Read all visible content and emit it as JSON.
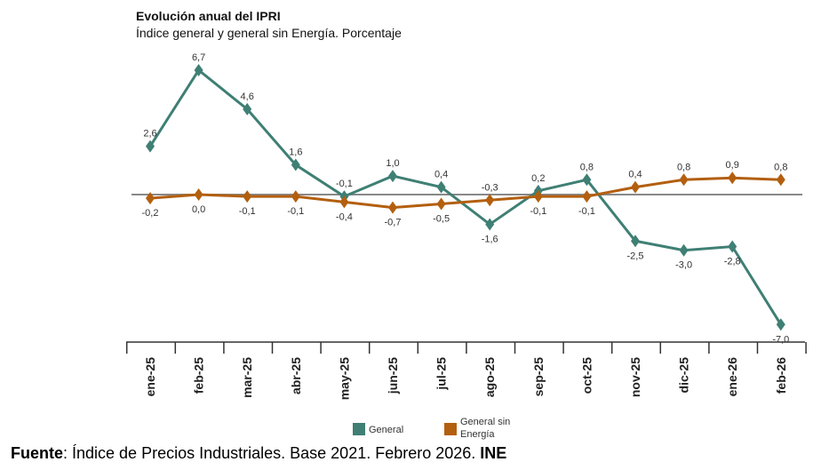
{
  "title": "Evolución anual del IPRI",
  "subtitle": "Índice general y general sin Energía. Porcentaje",
  "source": {
    "label": "Fuente",
    "text": ": Índice de Precios Industriales. Base 2021. Febrero 2026. ",
    "org": "INE"
  },
  "chart_data": {
    "type": "line",
    "title": "Evolución anual del IPRI",
    "subtitle": "Índice general y general sin Energía. Porcentaje",
    "categories": [
      "ene-25",
      "feb-25",
      "mar-25",
      "abr-25",
      "may-25",
      "jun-25",
      "jul-25",
      "ago-25",
      "sep-25",
      "oct-25",
      "nov-25",
      "dic-25",
      "ene-26",
      "feb-26"
    ],
    "series": [
      {
        "name": "General",
        "color": "#3f7f74",
        "values": [
          2.6,
          6.7,
          4.6,
          1.6,
          -0.1,
          1.0,
          0.4,
          -1.6,
          0.2,
          0.8,
          -2.5,
          -3.0,
          -2.8,
          -7.0
        ]
      },
      {
        "name": "General sin Energía",
        "color": "#b35f0f",
        "values": [
          -0.2,
          0.0,
          -0.1,
          -0.1,
          -0.4,
          -0.7,
          -0.5,
          -0.3,
          -0.1,
          -0.1,
          0.4,
          0.8,
          0.9,
          0.8
        ]
      }
    ],
    "marker": "diamond",
    "data_labels": true,
    "zero_line": true,
    "grid": false,
    "legend": "bottom"
  }
}
